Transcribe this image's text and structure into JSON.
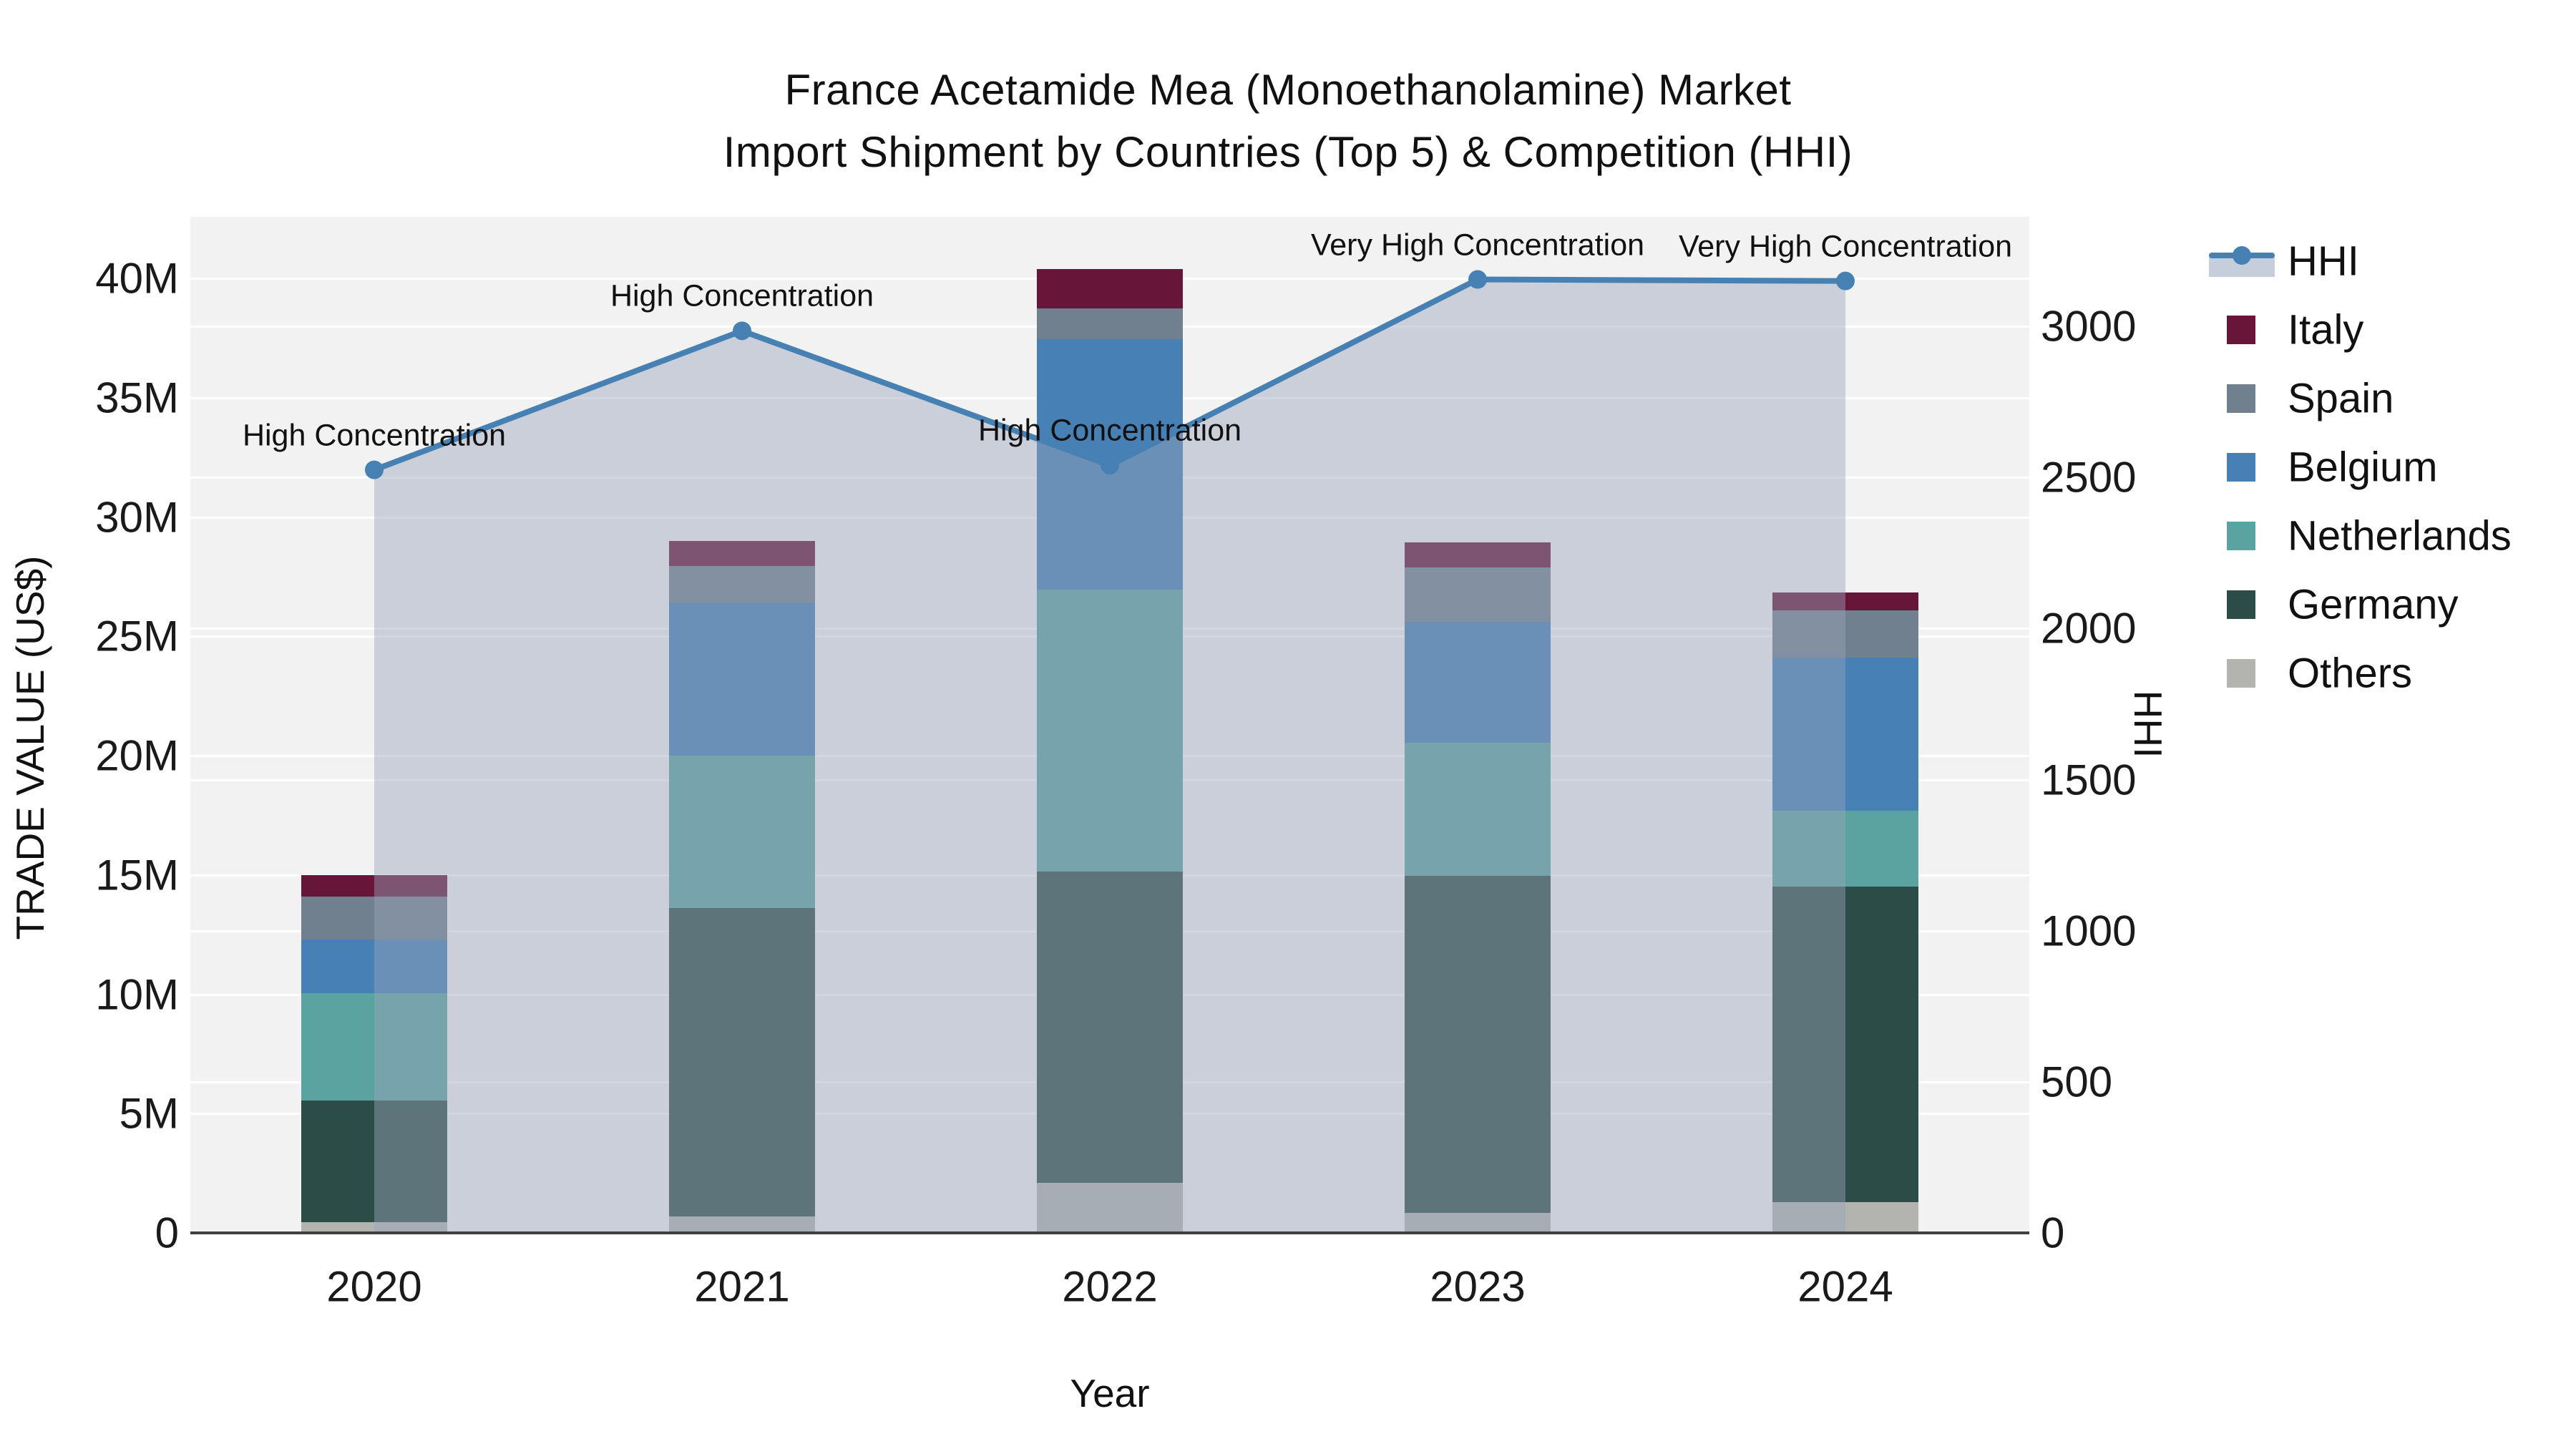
{
  "title": {
    "line1": "France Acetamide Mea (Monoethanolamine) Market",
    "line2": "Import Shipment by Countries (Top 5) & Competition (HHI)"
  },
  "axes": {
    "y_left": {
      "title": "TRADE VALUE (US$)",
      "tick_labels": [
        "0",
        "5M",
        "10M",
        "15M",
        "20M",
        "25M",
        "30M",
        "35M",
        "40M"
      ],
      "tick_values_millions": [
        0,
        5,
        10,
        15,
        20,
        25,
        30,
        35,
        40
      ]
    },
    "y_right": {
      "title": "HHI",
      "tick_labels": [
        "0",
        "500",
        "1000",
        "1500",
        "2000",
        "2500",
        "3000"
      ],
      "tick_values": [
        0,
        500,
        1000,
        1500,
        2000,
        2500,
        3000
      ]
    },
    "x": {
      "title": "Year",
      "categories": [
        "2020",
        "2021",
        "2022",
        "2023",
        "2024"
      ]
    }
  },
  "legend": {
    "items": [
      "HHI",
      "Italy",
      "Spain",
      "Belgium",
      "Netherlands",
      "Germany",
      "Others"
    ]
  },
  "colors": {
    "plot_bg": "#f2f2f2",
    "grid": "#ffffff",
    "axis_line": "#404040",
    "hhi_line": "#4781b3",
    "hhi_area_fill": "rgba(152,164,186,0.45)",
    "legend_band": "#c7cedb",
    "Italy": "#671538",
    "Spain": "#71808f",
    "Belgium": "#4680b4",
    "Netherlands": "#5ba3a0",
    "Germany": "#2c4d47",
    "Others": "#b3b4b0"
  },
  "chart_data": {
    "type": "bar",
    "subtype": "stacked-bars-with-line-overlay",
    "categories": [
      "2020",
      "2021",
      "2022",
      "2023",
      "2024"
    ],
    "bar_value_unit": "million US$",
    "series": [
      {
        "name": "Others",
        "values": [
          0.45,
          0.7,
          2.1,
          0.85,
          1.3
        ]
      },
      {
        "name": "Germany",
        "values": [
          5.1,
          12.9,
          13.05,
          14.1,
          13.2
        ]
      },
      {
        "name": "Netherlands",
        "values": [
          4.5,
          6.4,
          11.8,
          5.6,
          3.2
        ]
      },
      {
        "name": "Belgium",
        "values": [
          2.25,
          6.4,
          10.5,
          5.05,
          6.4
        ]
      },
      {
        "name": "Spain",
        "values": [
          1.8,
          1.55,
          1.3,
          2.3,
          2.0
        ]
      },
      {
        "name": "Italy",
        "values": [
          0.9,
          1.05,
          1.65,
          1.05,
          0.75
        ]
      }
    ],
    "bar_totals_millions": [
      15.0,
      29.0,
      40.4,
      28.95,
      26.85
    ],
    "line_series": {
      "name": "HHI",
      "values": [
        2525,
        2985,
        2540,
        3155,
        3150
      ],
      "annotations": [
        "High Concentration",
        "High Concentration",
        "High Concentration",
        "Very High Concentration",
        "Very High Concentration"
      ],
      "area_under_line": true
    },
    "ylim_left_millions": [
      0,
      42.55
    ],
    "ylim_right_hhi": [
      0,
      3000
    ],
    "grid": true,
    "legend_position": "right",
    "title": "France Acetamide Mea (Monoethanolamine) Market Import Shipment by Countries (Top 5) & Competition (HHI)",
    "xlabel": "Year",
    "ylabel_left": "TRADE VALUE (US$)",
    "ylabel_right": "HHI"
  }
}
